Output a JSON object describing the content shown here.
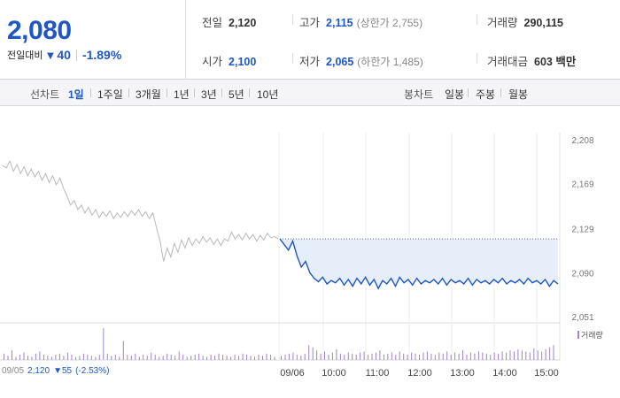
{
  "summary": {
    "price": "2,080",
    "change_label": "전일대비",
    "change_arrow": "▼",
    "change_abs": "40",
    "change_pct": "-1.89%",
    "prev_close": {
      "label": "전일",
      "value": "2,120"
    },
    "high": {
      "label": "고가",
      "value": "2,115",
      "sub": "(상한가 2,755)"
    },
    "volume": {
      "label": "거래량",
      "value": "290,115"
    },
    "open": {
      "label": "시가",
      "value": "2,100"
    },
    "low": {
      "label": "저가",
      "value": "2,065",
      "sub": "(하한가 1,485)"
    },
    "amount": {
      "label": "거래대금",
      "value": "603 백만"
    }
  },
  "periods": {
    "line_label": "선차트",
    "line_items": [
      "1일",
      "1주일",
      "3개월",
      "1년",
      "3년",
      "5년",
      "10년"
    ],
    "active_index": 0,
    "candle_label": "봉차트",
    "candle_items": [
      "일봉",
      "주봉",
      "월봉"
    ]
  },
  "colors": {
    "down": "#1f57c4",
    "prev_line": "#b9b9b9",
    "fill": "#e6eefa",
    "volume": "#9a86c9"
  },
  "chart_data": {
    "type": "line",
    "yticks": [
      "2,208",
      "2,169",
      "2,129",
      "2,090",
      "2,051"
    ],
    "ylim": [
      2051,
      2208
    ],
    "xticks": [
      "09/05",
      "09/06",
      "10:00",
      "11:00",
      "12:00",
      "13:00",
      "14:00",
      "15:00"
    ],
    "prev_day_label": {
      "date": "09/05",
      "close": "2,120",
      "arrow": "▼",
      "change": "55",
      "pct": "(-2.53%)"
    },
    "reference_price": 2120,
    "volume_legend": "거래량",
    "series": [
      {
        "day": "09/05",
        "values": [
          2185,
          2183,
          2189,
          2180,
          2186,
          2178,
          2184,
          2176,
          2182,
          2175,
          2180,
          2172,
          2178,
          2170,
          2176,
          2168,
          2174,
          2165,
          2158,
          2150,
          2154,
          2146,
          2150,
          2143,
          2148,
          2141,
          2146,
          2139,
          2144,
          2140,
          2145,
          2138,
          2143,
          2139,
          2144,
          2140,
          2145,
          2141,
          2146,
          2140,
          2144,
          2138,
          2143,
          2130,
          2118,
          2100,
          2112,
          2104,
          2116,
          2108,
          2119,
          2112,
          2121,
          2114,
          2120,
          2116,
          2122,
          2117,
          2121,
          2115,
          2120,
          2114,
          2120,
          2118,
          2126,
          2120,
          2124,
          2119,
          2125,
          2120,
          2124,
          2118,
          2123,
          2119,
          2125,
          2121,
          2122,
          2120
        ]
      },
      {
        "day": "09/06",
        "values": [
          2120,
          2115,
          2110,
          2118,
          2105,
          2095,
          2100,
          2090,
          2085,
          2082,
          2086,
          2080,
          2083,
          2081,
          2085,
          2079,
          2084,
          2078,
          2085,
          2080,
          2086,
          2079,
          2084,
          2076,
          2083,
          2080,
          2085,
          2078,
          2086,
          2081,
          2084,
          2079,
          2085,
          2080,
          2083,
          2081,
          2084,
          2080,
          2085,
          2079,
          2084,
          2081,
          2083,
          2080,
          2085,
          2079,
          2084,
          2081,
          2083,
          2080,
          2084,
          2081,
          2085,
          2080,
          2083,
          2081,
          2084,
          2080,
          2085,
          2081,
          2083,
          2080,
          2084,
          2078,
          2083,
          2080
        ]
      }
    ],
    "volume": [
      6,
      4,
      9,
      3,
      5,
      7,
      4,
      3,
      6,
      8,
      5,
      4,
      3,
      5,
      6,
      4,
      7,
      5,
      3,
      4,
      6,
      5,
      4,
      3,
      5,
      30,
      6,
      4,
      5,
      3,
      18,
      5,
      4,
      6,
      3,
      5,
      4,
      7,
      5,
      3,
      4,
      6,
      5,
      4,
      8,
      5,
      3,
      4,
      5,
      6,
      4,
      3,
      5,
      4,
      6,
      5,
      4,
      3,
      5,
      4,
      6,
      5,
      4,
      3,
      5,
      4,
      6,
      5,
      3,
      4,
      5,
      6,
      7,
      5,
      4,
      6,
      14,
      12,
      9,
      6,
      8,
      5,
      7,
      10,
      6,
      5,
      7,
      6,
      5,
      7,
      8,
      5,
      6,
      7,
      9,
      5,
      6,
      7,
      5,
      8,
      6,
      5,
      7,
      6,
      5,
      7,
      8,
      6,
      5,
      7,
      6,
      8,
      5,
      7,
      6,
      9,
      5,
      7,
      6,
      8,
      7,
      6,
      5,
      7,
      6,
      8,
      7,
      9,
      8,
      10,
      9,
      8,
      7,
      11,
      9,
      8,
      10,
      12,
      14
    ]
  }
}
